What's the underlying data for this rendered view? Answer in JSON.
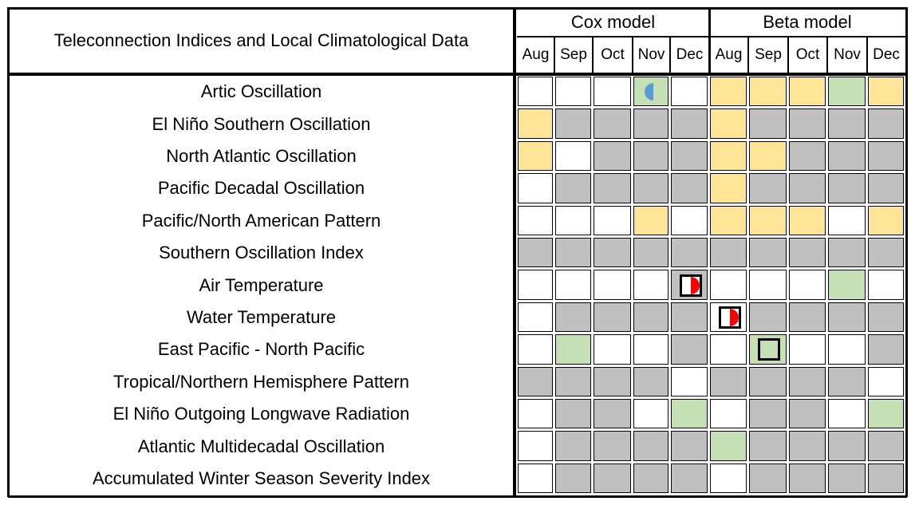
{
  "header": {
    "title": "Teleconnection Indices and Local Climatological Data",
    "cox_label": "Cox model",
    "beta_label": "Beta model",
    "months": [
      "Aug",
      "Sep",
      "Oct",
      "Nov",
      "Dec",
      "Aug",
      "Sep",
      "Oct",
      "Nov",
      "Dec"
    ]
  },
  "colors": {
    "W": "#ffffff",
    "G": "#c0c0c0",
    "Y": "#ffe598",
    "L": "#c5e0b4",
    "half_blue": "#5b9bd5",
    "half_red": "#ff0000"
  },
  "rows": [
    {
      "label": "Artic Oscillation",
      "cells": [
        "W",
        "W",
        "W",
        "L",
        "W",
        "Y",
        "Y",
        "Y",
        "L",
        "Y"
      ]
    },
    {
      "label": "El Niño Southern Oscillation",
      "cells": [
        "Y",
        "G",
        "G",
        "G",
        "G",
        "Y",
        "G",
        "G",
        "G",
        "G"
      ]
    },
    {
      "label": "North Atlantic Oscillation",
      "cells": [
        "Y",
        "W",
        "G",
        "G",
        "G",
        "Y",
        "Y",
        "G",
        "G",
        "G"
      ]
    },
    {
      "label": "Pacific Decadal Oscillation",
      "cells": [
        "W",
        "G",
        "G",
        "G",
        "G",
        "Y",
        "G",
        "G",
        "G",
        "G"
      ]
    },
    {
      "label": "Pacific/North American Pattern",
      "cells": [
        "W",
        "W",
        "W",
        "Y",
        "W",
        "Y",
        "Y",
        "Y",
        "W",
        "Y"
      ]
    },
    {
      "label": "Southern Oscillation Index",
      "cells": [
        "G",
        "G",
        "G",
        "G",
        "G",
        "G",
        "G",
        "G",
        "G",
        "G"
      ]
    },
    {
      "label": "Air Temperature",
      "cells": [
        "W",
        "W",
        "W",
        "W",
        "G",
        "W",
        "W",
        "W",
        "L",
        "W"
      ]
    },
    {
      "label": "Water Temperature",
      "cells": [
        "W",
        "G",
        "G",
        "G",
        "G",
        "W",
        "G",
        "G",
        "G",
        "G"
      ]
    },
    {
      "label": "East Pacific - North Pacific",
      "cells": [
        "W",
        "L",
        "W",
        "W",
        "G",
        "W",
        "L",
        "W",
        "W",
        "G"
      ]
    },
    {
      "label": "Tropical/Northern Hemisphere Pattern",
      "cells": [
        "G",
        "G",
        "G",
        "G",
        "W",
        "G",
        "G",
        "G",
        "G",
        "W"
      ]
    },
    {
      "label": "El Niño Outgoing Longwave Radiation",
      "cells": [
        "W",
        "G",
        "G",
        "W",
        "L",
        "W",
        "G",
        "G",
        "W",
        "L"
      ]
    },
    {
      "label": "Atlantic Multidecadal Oscillation",
      "cells": [
        "W",
        "G",
        "G",
        "G",
        "G",
        "L",
        "G",
        "G",
        "G",
        "G"
      ]
    },
    {
      "label": "Accumulated Winter Season Severity Index",
      "cells": [
        "W",
        "G",
        "G",
        "G",
        "G",
        "W",
        "G",
        "G",
        "G",
        "G"
      ]
    }
  ],
  "markers": [
    {
      "row": 0,
      "col": 3,
      "type": "half-circle-left",
      "color": "half_blue"
    },
    {
      "row": 6,
      "col": 4,
      "type": "boxed-half-circle-right",
      "color": "half_red"
    },
    {
      "row": 7,
      "col": 5,
      "type": "boxed-half-circle-right",
      "color": "half_red"
    },
    {
      "row": 8,
      "col": 6,
      "type": "box"
    }
  ]
}
